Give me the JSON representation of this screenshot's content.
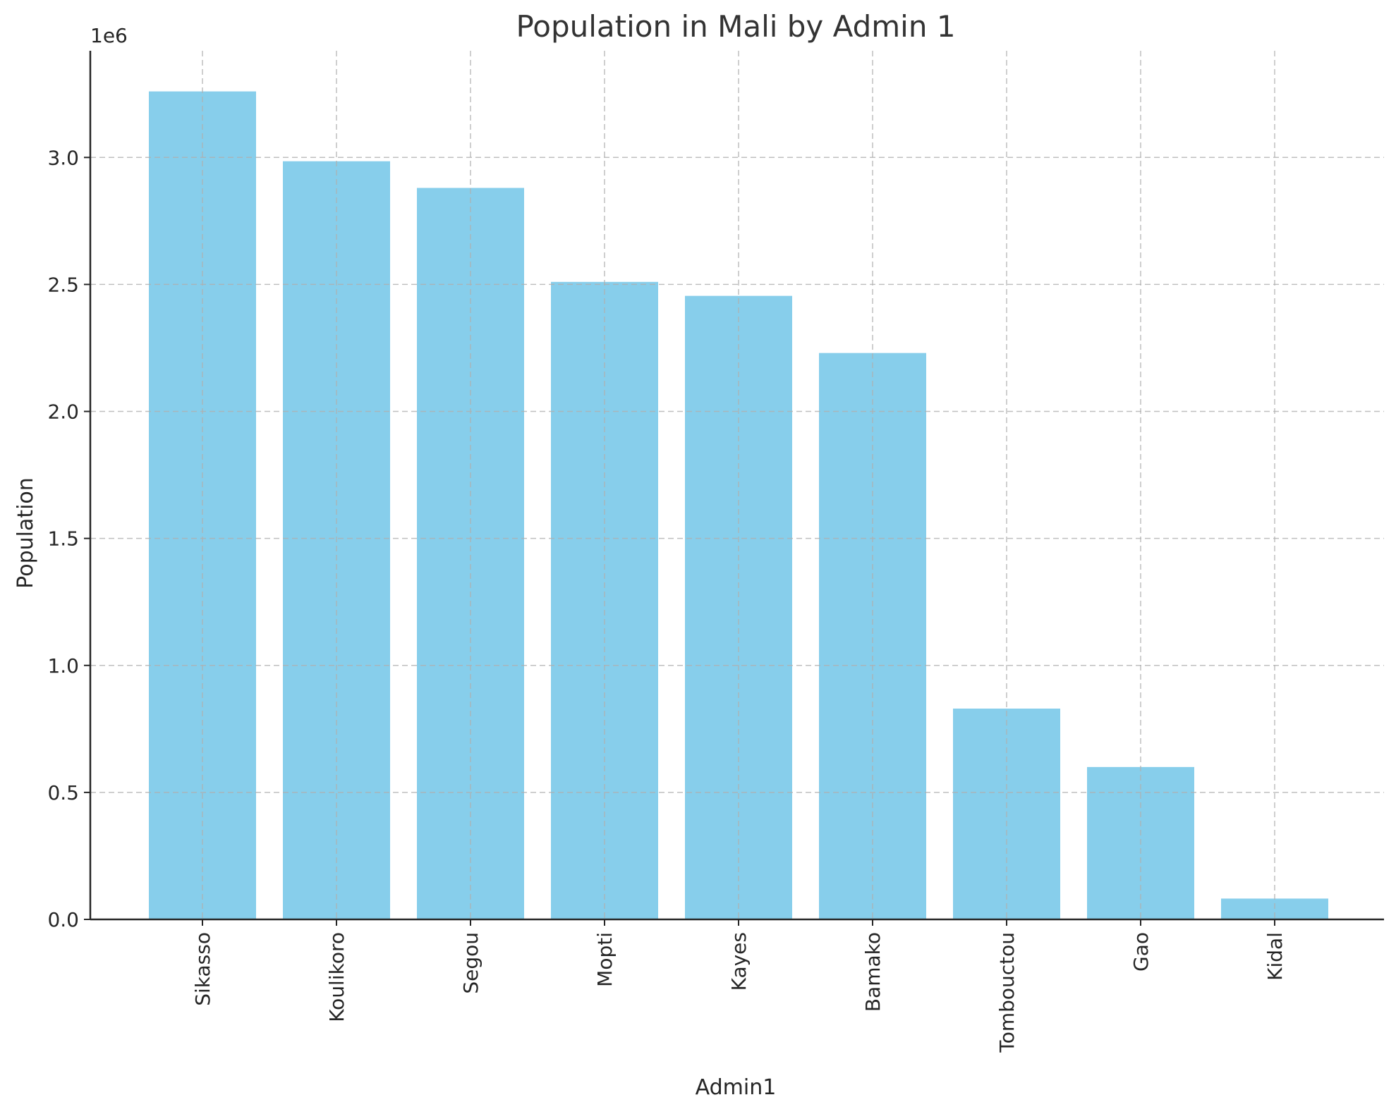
{
  "chart_data": {
    "type": "bar",
    "title": "Population in Mali by Admin 1",
    "xlabel": "Admin1",
    "ylabel": "Population",
    "y_offset_label": "1e6",
    "categories": [
      "Sikasso",
      "Koulikoro",
      "Segou",
      "Mopti",
      "Kayes",
      "Bamako",
      "Tombouctou",
      "Gao",
      "Kidal"
    ],
    "values": [
      3260000,
      2985000,
      2880000,
      2510000,
      2455000,
      2230000,
      830000,
      600000,
      82000
    ],
    "ylim": [
      0,
      3420000
    ],
    "yticks": [
      0,
      500000,
      1000000,
      1500000,
      2000000,
      2500000,
      3000000
    ],
    "ytick_labels": [
      "0.0",
      "0.5",
      "1.0",
      "1.5",
      "2.0",
      "2.5",
      "3.0"
    ],
    "grid": true,
    "bar_color": "#87CEEB"
  }
}
